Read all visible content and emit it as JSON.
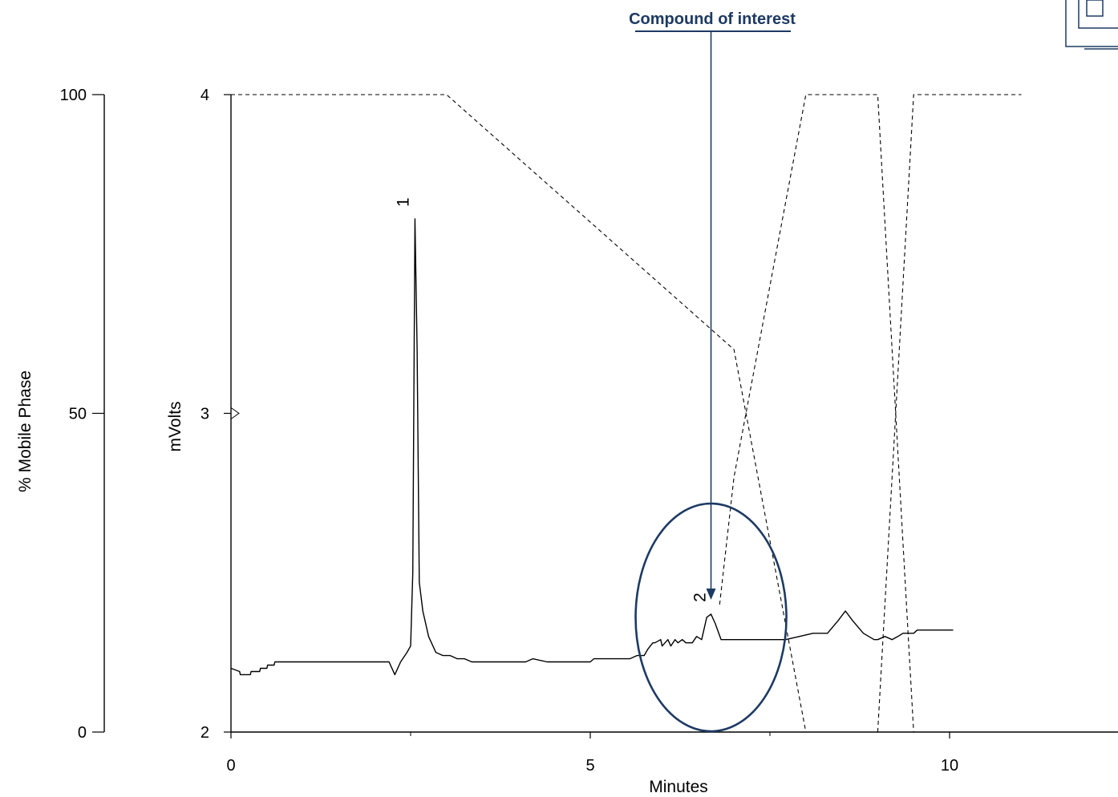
{
  "chart_data": {
    "type": "line",
    "xlabel": "Minutes",
    "ylabel": "mVolts",
    "y2label": "% Mobile Phase",
    "xlim": [
      0,
      12.3
    ],
    "ylim": [
      2,
      4
    ],
    "y2lim": [
      0,
      100
    ],
    "x_ticks": [
      "0",
      "5",
      "10"
    ],
    "y_ticks": [
      "2",
      "3",
      "4"
    ],
    "y2_ticks": [
      "0",
      "50",
      "100"
    ],
    "annotation": "Compound of interest",
    "peaks": [
      {
        "label": "1",
        "x": 2.55,
        "y": 3.61
      },
      {
        "label": "2",
        "x": 6.68,
        "y": 2.37
      }
    ],
    "colors": {
      "trace": "#000000",
      "accent": "#1d3a63"
    },
    "series": [
      {
        "style": "solid",
        "axis": "mVolts",
        "x": [
          0,
          0.12,
          0.13,
          0.27,
          0.28,
          0.4,
          0.41,
          0.5,
          0.51,
          0.6,
          0.61,
          0.65,
          0.66,
          2.2,
          2.28,
          2.36,
          2.45,
          2.5,
          2.53,
          2.56,
          2.59,
          2.62,
          2.67,
          2.75,
          2.85,
          2.95,
          3.05,
          3.15,
          3.25,
          3.35,
          3.4,
          3.5,
          3.6,
          4.1,
          4.2,
          4.4,
          4.45,
          5,
          5.05,
          5.55,
          5.65,
          5.75,
          5.8,
          5.87,
          5.9,
          5.98,
          6.0,
          6.08,
          6.12,
          6.18,
          6.22,
          6.28,
          6.33,
          6.38,
          6.42,
          6.48,
          6.55,
          6.62,
          6.68,
          6.74,
          6.82,
          6.9,
          7.0,
          7.5,
          7.72,
          8.1,
          8.3,
          8.45,
          8.55,
          8.65,
          8.8,
          8.95,
          9.0,
          9.1,
          9.2,
          9.28,
          9.35,
          9.42,
          9.5,
          9.55,
          9.62,
          10.05
        ],
        "values": [
          2.2,
          2.19,
          2.18,
          2.18,
          2.19,
          2.19,
          2.2,
          2.2,
          2.21,
          2.21,
          2.22,
          2.22,
          2.22,
          2.22,
          2.18,
          2.22,
          2.25,
          2.27,
          2.5,
          3.61,
          3.2,
          2.47,
          2.38,
          2.3,
          2.25,
          2.24,
          2.24,
          2.23,
          2.23,
          2.22,
          2.22,
          2.22,
          2.22,
          2.22,
          2.23,
          2.22,
          2.22,
          2.22,
          2.23,
          2.23,
          2.24,
          2.24,
          2.26,
          2.28,
          2.28,
          2.29,
          2.27,
          2.29,
          2.27,
          2.29,
          2.28,
          2.29,
          2.28,
          2.28,
          2.28,
          2.3,
          2.29,
          2.36,
          2.37,
          2.34,
          2.29,
          2.29,
          2.29,
          2.29,
          2.29,
          2.31,
          2.31,
          2.35,
          2.38,
          2.35,
          2.31,
          2.29,
          2.29,
          2.3,
          2.29,
          2.3,
          2.31,
          2.31,
          2.31,
          2.32,
          2.32,
          2.32
        ]
      },
      {
        "style": "dashed",
        "axis": "% Mobile Phase",
        "x": [
          0,
          3.0,
          7.0,
          8.0,
          9.0,
          9.5,
          11.0
        ],
        "values": [
          100,
          100,
          60,
          0,
          0,
          100,
          100
        ]
      },
      {
        "style": "dashed",
        "axis": "% Mobile Phase",
        "x": [
          6.8,
          7.0,
          8.0,
          9.0,
          9.5
        ],
        "values": [
          20,
          40,
          100,
          100,
          0
        ]
      }
    ]
  }
}
